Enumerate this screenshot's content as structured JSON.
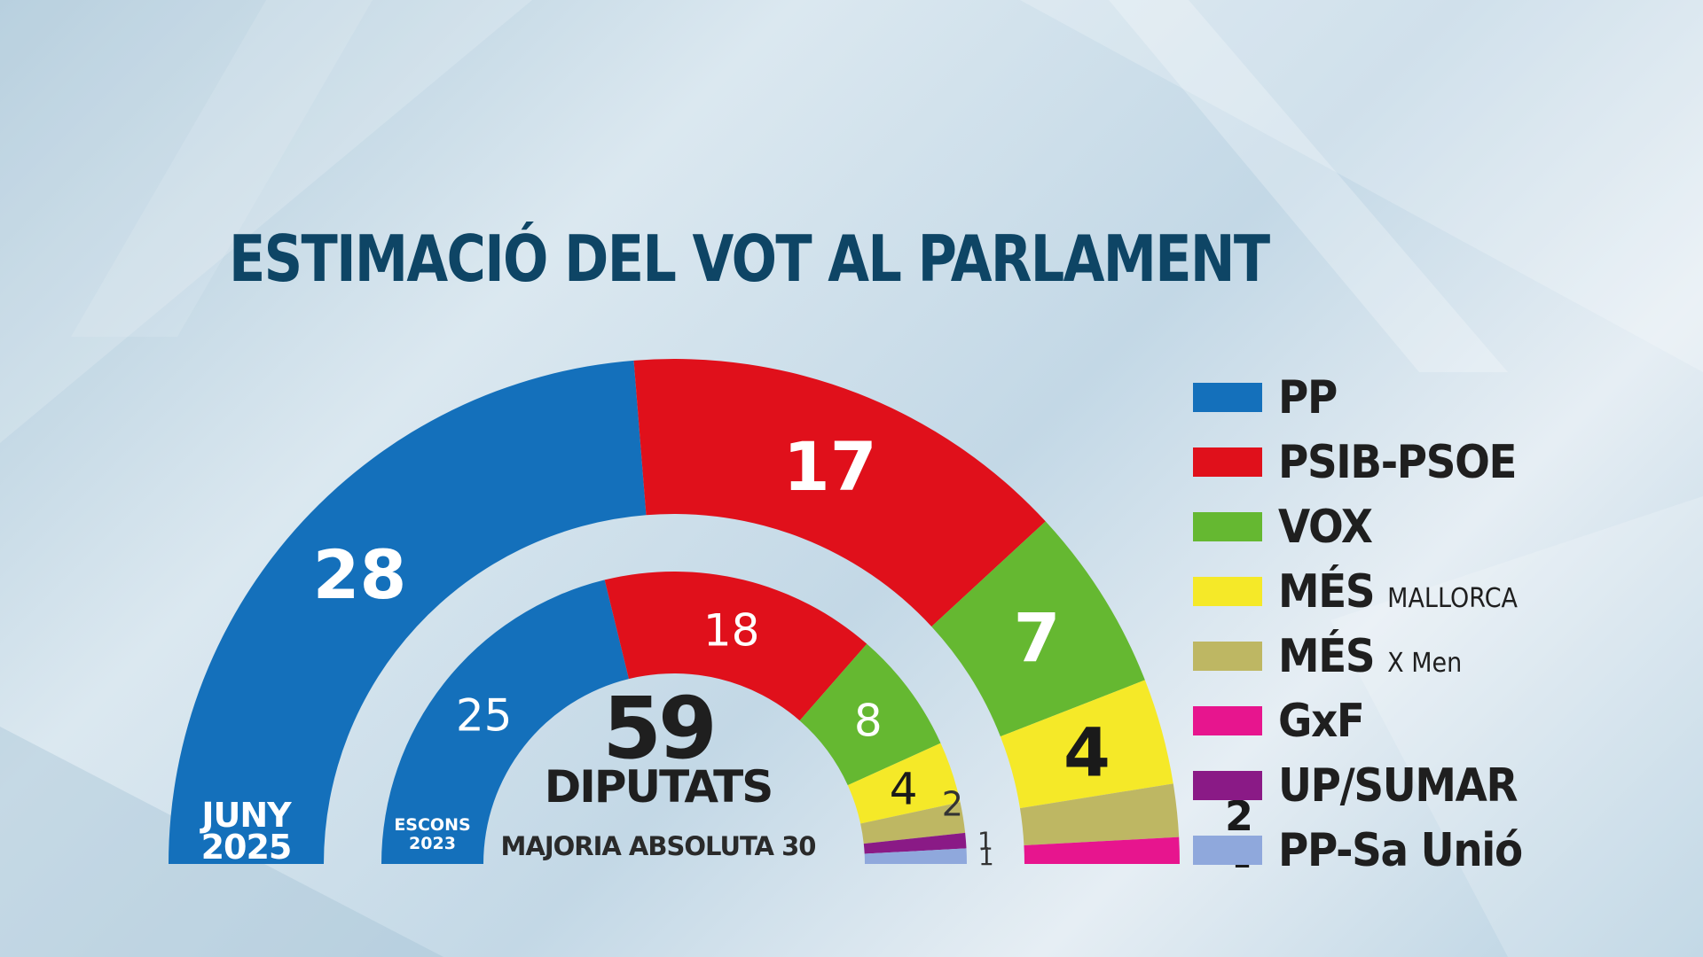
{
  "title": "ESTIMACIÓ DEL VOT AL PARLAMENT",
  "chart_data": {
    "type": "parliament-donut",
    "title": "ESTIMACIÓ DEL VOT AL PARLAMENT",
    "total_seats": 59,
    "center_number": "59",
    "center_label": "DIPUTATS",
    "majority_label": "MAJORIA ABSOLUTA 30",
    "parties": [
      "PP",
      "PSIB-PSOE",
      "VOX",
      "MÉS MALLORCA",
      "MÉS X Men",
      "GxF",
      "UP/SUMAR",
      "PP-Sa Unió"
    ],
    "colors": [
      "#1470bb",
      "#e0101b",
      "#65b831",
      "#f5e928",
      "#beb763",
      "#e7158e",
      "#8a1a86",
      "#8fa8dc"
    ],
    "series": [
      {
        "name": "JUNY 2025",
        "label_line1": "JUNY",
        "label_line2": "2025",
        "values": [
          28,
          17,
          7,
          4,
          2,
          1,
          0,
          0
        ]
      },
      {
        "name": "ESCONS 2023",
        "label_line1": "ESCONS",
        "label_line2": "2023",
        "values": [
          25,
          18,
          8,
          4,
          2,
          0,
          1,
          1
        ]
      }
    ]
  },
  "legend": [
    {
      "main": "PP",
      "sub": "",
      "color": "#1470bb"
    },
    {
      "main": "PSIB-PSOE",
      "sub": "",
      "color": "#e0101b"
    },
    {
      "main": "VOX",
      "sub": "",
      "color": "#65b831"
    },
    {
      "main": "MÉS",
      "sub": "MALLORCA",
      "color": "#f5e928"
    },
    {
      "main": "MÉS",
      "sub": "X Men",
      "color": "#beb763"
    },
    {
      "main": "GxF",
      "sub": "",
      "color": "#e7158e"
    },
    {
      "main": "UP/SUMAR",
      "sub": "",
      "color": "#8a1a86"
    },
    {
      "main": "PP-Sa Unió",
      "sub": "",
      "color": "#8fa8dc"
    }
  ]
}
